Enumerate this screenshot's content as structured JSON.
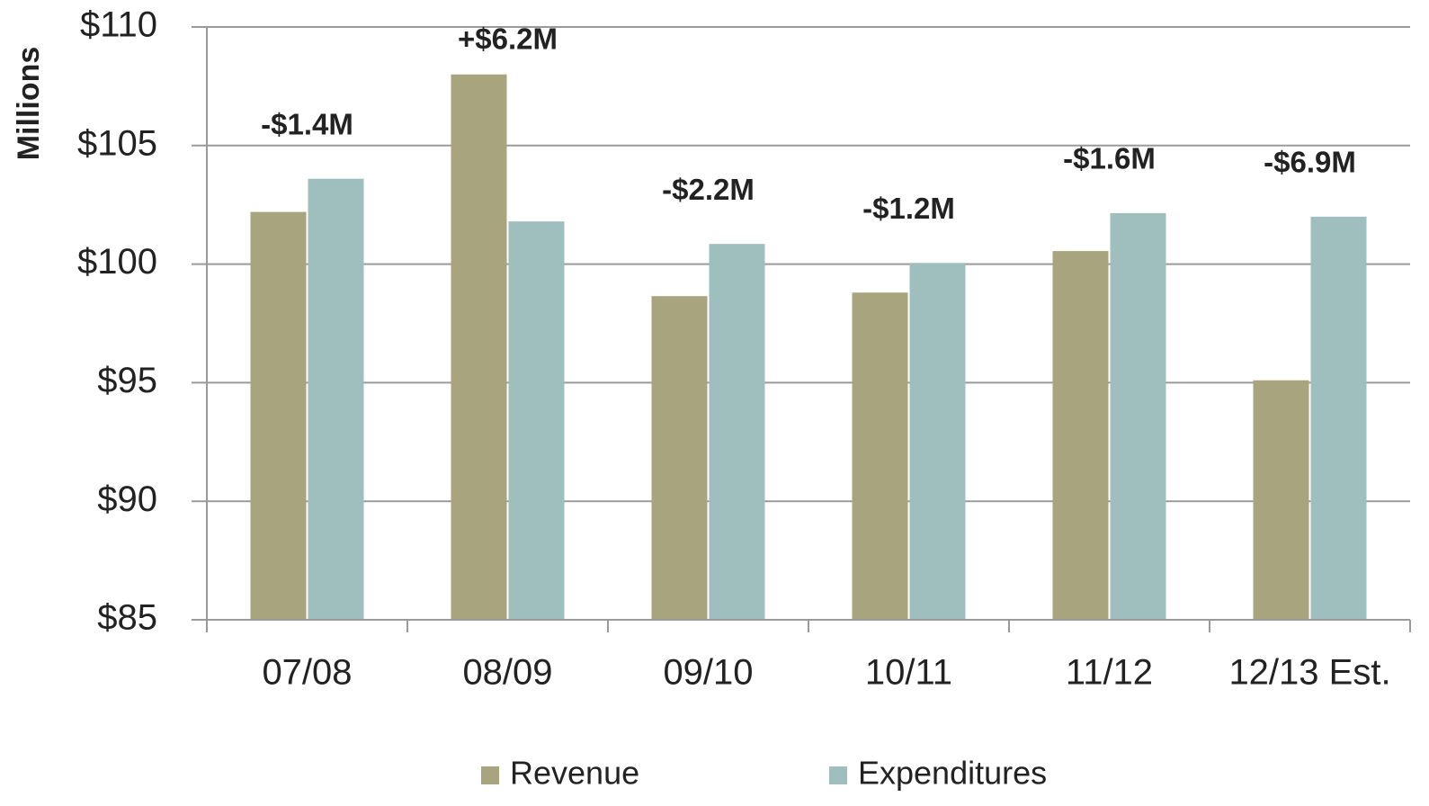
{
  "chart_data": {
    "type": "bar",
    "y_label": "Millions",
    "categories": [
      "07/08",
      "08/09",
      "09/10",
      "10/11",
      "11/12",
      "12/13 Est."
    ],
    "series": [
      {
        "name": "Revenue",
        "color": "#a8a57e",
        "values": [
          102.2,
          108.0,
          98.65,
          98.8,
          100.55,
          95.1
        ]
      },
      {
        "name": "Expenditures",
        "color": "#9fbfbe",
        "values": [
          103.6,
          101.8,
          100.85,
          100.05,
          102.15,
          102.0
        ]
      }
    ],
    "annotations": [
      "-$1.4M",
      "+$6.2M",
      "-$2.2M",
      "-$1.2M",
      "-$1.6M",
      "-$6.9M"
    ],
    "ylim": [
      85,
      110
    ],
    "yticks": [
      {
        "value": 85,
        "label": "$85"
      },
      {
        "value": 90,
        "label": "$90"
      },
      {
        "value": 95,
        "label": "$95"
      },
      {
        "value": 100,
        "label": "$100"
      },
      {
        "value": 105,
        "label": "$105"
      },
      {
        "value": 110,
        "label": "$110"
      }
    ],
    "grid": true,
    "legend": "bottom"
  }
}
